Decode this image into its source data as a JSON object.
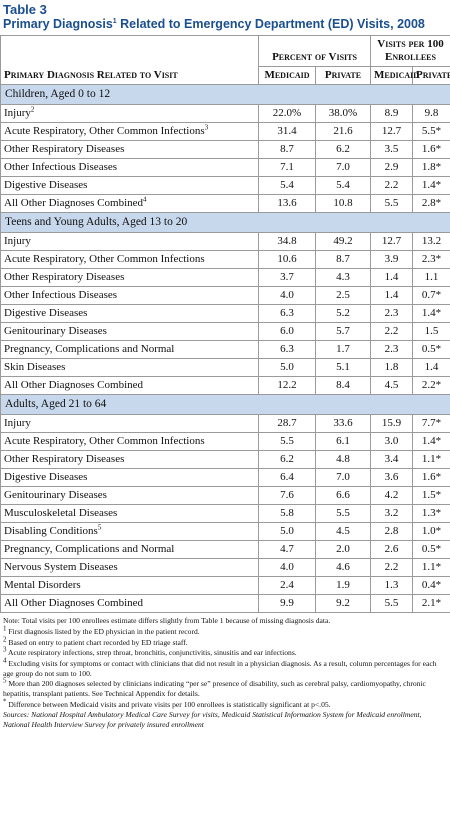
{
  "header": {
    "label": "Table 3",
    "title": {
      "before": "Primary Diagnosis",
      "note": "1",
      "after": " Related to Emergency Department (ED) Visits, 2008"
    }
  },
  "table": {
    "row_header": "Primary Diagnosis Related to Visit",
    "groups": [
      "Percent of Visits",
      "Visits per 100 Enrollees"
    ],
    "columns": [
      "Medicaid",
      "Private",
      "Medicaid",
      "Private"
    ],
    "sections": [
      {
        "title": "Children, Aged 0 to 12",
        "rows": [
          {
            "label": "Injury",
            "note": "2",
            "values": [
              "22.0%",
              "38.0%",
              "8.9",
              "9.8"
            ]
          },
          {
            "label": "Acute Respiratory, Other Common Infections",
            "note": "3",
            "values": [
              "31.4",
              "21.6",
              "12.7",
              "5.5*"
            ]
          },
          {
            "label": "Other Respiratory Diseases",
            "values": [
              "8.7",
              "6.2",
              "3.5",
              "1.6*"
            ]
          },
          {
            "label": "Other Infectious Diseases",
            "values": [
              "7.1",
              "7.0",
              "2.9",
              "1.8*"
            ]
          },
          {
            "label": "Digestive Diseases",
            "values": [
              "5.4",
              "5.4",
              "2.2",
              "1.4*"
            ]
          },
          {
            "label": "All Other Diagnoses Combined",
            "note": "4",
            "values": [
              "13.6",
              "10.8",
              "5.5",
              "2.8*"
            ]
          }
        ]
      },
      {
        "title": "Teens and Young Adults, Aged 13 to 20",
        "rows": [
          {
            "label": "Injury",
            "values": [
              "34.8",
              "49.2",
              "12.7",
              "13.2"
            ]
          },
          {
            "label": "Acute Respiratory, Other Common Infections",
            "values": [
              "10.6",
              "8.7",
              "3.9",
              "2.3*"
            ]
          },
          {
            "label": "Other Respiratory Diseases",
            "values": [
              "3.7",
              "4.3",
              "1.4",
              "1.1"
            ]
          },
          {
            "label": "Other Infectious Diseases",
            "values": [
              "4.0",
              "2.5",
              "1.4",
              "0.7*"
            ]
          },
          {
            "label": "Digestive Diseases",
            "values": [
              "6.3",
              "5.2",
              "2.3",
              "1.4*"
            ]
          },
          {
            "label": "Genitourinary Diseases",
            "values": [
              "6.0",
              "5.7",
              "2.2",
              "1.5"
            ]
          },
          {
            "label": "Pregnancy, Complications and Normal",
            "values": [
              "6.3",
              "1.7",
              "2.3",
              "0.5*"
            ]
          },
          {
            "label": "Skin Diseases",
            "values": [
              "5.0",
              "5.1",
              "1.8",
              "1.4"
            ]
          },
          {
            "label": "All Other Diagnoses Combined",
            "values": [
              "12.2",
              "8.4",
              "4.5",
              "2.2*"
            ]
          }
        ]
      },
      {
        "title": "Adults, Aged 21 to 64",
        "rows": [
          {
            "label": "Injury",
            "values": [
              "28.7",
              "33.6",
              "15.9",
              "7.7*"
            ]
          },
          {
            "label": "Acute Respiratory, Other Common Infections",
            "values": [
              "5.5",
              "6.1",
              "3.0",
              "1.4*"
            ]
          },
          {
            "label": "Other Respiratory Diseases",
            "values": [
              "6.2",
              "4.8",
              "3.4",
              "1.1*"
            ]
          },
          {
            "label": "Digestive Diseases",
            "values": [
              "6.4",
              "7.0",
              "3.6",
              "1.6*"
            ]
          },
          {
            "label": "Genitourinary Diseases",
            "values": [
              "7.6",
              "6.6",
              "4.2",
              "1.5*"
            ]
          },
          {
            "label": "Musculoskeletal Diseases",
            "values": [
              "5.8",
              "5.5",
              "3.2",
              "1.3*"
            ]
          },
          {
            "label": "Disabling Conditions",
            "note": "5",
            "values": [
              "5.0",
              "4.5",
              "2.8",
              "1.0*"
            ]
          },
          {
            "label": "Pregnancy, Complications and Normal",
            "values": [
              "4.7",
              "2.0",
              "2.6",
              "0.5*"
            ]
          },
          {
            "label": "Nervous System Diseases",
            "values": [
              "4.0",
              "4.6",
              "2.2",
              "1.1*"
            ]
          },
          {
            "label": "Mental Disorders",
            "values": [
              "2.4",
              "1.9",
              "1.3",
              "0.4*"
            ]
          },
          {
            "label": "All Other Diagnoses Combined",
            "values": [
              "9.9",
              "9.2",
              "5.5",
              "2.1*"
            ]
          }
        ]
      }
    ]
  },
  "footnotes": {
    "note": "Note: Total visits per 100 enrollees estimate differs slightly from Table 1 because of missing diagnosis data.",
    "items": [
      {
        "mark": "1",
        "text": "First diagnosis listed by the ED physician in the patient record."
      },
      {
        "mark": "2",
        "text": "Based on entry to patient chart recorded by ED triage staff."
      },
      {
        "mark": "3",
        "text": "Acute respiratory infections, strep throat, bronchitis, conjunctivitis, sinusitis and ear infections."
      },
      {
        "mark": "4",
        "text": "Excluding visits for symptoms or contact with clinicians that did not result in a physician diagnosis. As a result, column percentages for each age group do not sum to 100."
      },
      {
        "mark": "5",
        "text": "More than 200 diagnoses selected by clinicians indicating “per se” presence of disability, such as cerebral palsy, cardiomyopathy, chronic hepatitis, transplant patients. See Technical Appendix for details."
      },
      {
        "mark": "*",
        "text": "Difference between Medicaid visits and private visits per 100 enrollees is statistically significant at p<.05."
      }
    ],
    "sources": "Sources: National Hospital Ambulatory Medical Care Survey for visits, Medicaid Statistical Information System for Medicaid enrollment, National Health Interview Survey for privately insured enrollment"
  }
}
